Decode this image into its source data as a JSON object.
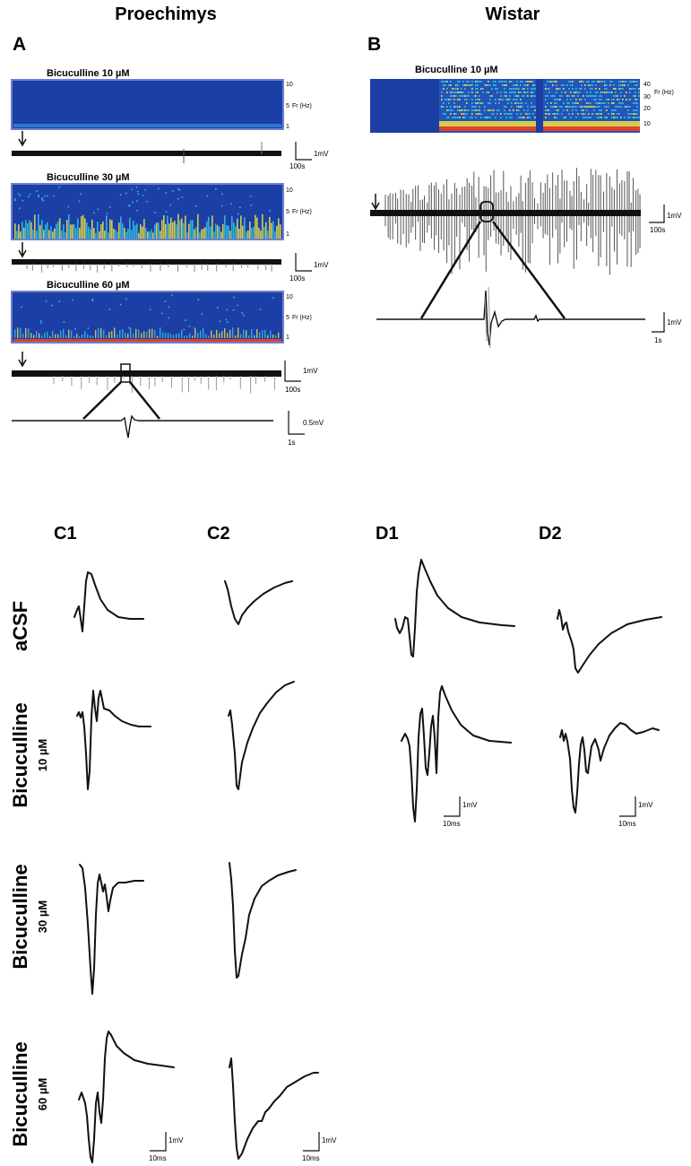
{
  "figure": {
    "col_proechimys": "Proechimys",
    "col_wistar": "Wistar",
    "panel_a": "A",
    "panel_b": "B",
    "c1": "C1",
    "c2": "C2",
    "d1": "D1",
    "d2": "D2"
  },
  "panel_a": {
    "spec1_title": "Bicuculline 10 µM",
    "spec2_title": "Bicuculline 30 µM",
    "spec3_title": "Bicuculline 60 µM",
    "freq_label": "Fr (Hz)",
    "freq_ticks": [
      "10",
      "5",
      "1"
    ],
    "trace_scale_v": "1mV",
    "trace_scale_t": "100s",
    "zoom_scale_v": "0.5mV",
    "zoom_scale_t": "1s"
  },
  "panel_b": {
    "spec_title": "Bicuculline 10 µM",
    "freq_label": "Fr (Hz)",
    "freq_ticks": [
      "40",
      "30",
      "20",
      "10"
    ],
    "trace_scale_v": "1mV",
    "trace_scale_t": "100s",
    "zoom_scale_v": "1mV",
    "zoom_scale_t": "1s"
  },
  "rows": {
    "acsf": "aCSF",
    "bic": "Bicuculline",
    "dose10": "10 µM",
    "dose30": "30 µM",
    "dose60": "60 µM"
  },
  "evoked_scales": {
    "v": "1mV",
    "t": "10ms"
  },
  "colors": {
    "spectro_bg": "#1c3fa6",
    "spectro_border": "#6e7fd0",
    "spectro_cyan": "#34c6e0",
    "spectro_yellow": "#f2e43c",
    "spectro_red": "#e2402a",
    "trace": "#111111"
  },
  "chart_data": [
    {
      "type": "heatmap",
      "title": "Bicuculline 10 µM",
      "ylabel": "Fr (Hz)",
      "yticks": [
        "10",
        "5",
        "1"
      ],
      "activity": "none"
    },
    {
      "type": "heatmap",
      "title": "Bicuculline 30 µM",
      "ylabel": "Fr (Hz)",
      "yticks": [
        "10",
        "5",
        "1"
      ],
      "activity": "low-frequency bursts"
    },
    {
      "type": "heatmap",
      "title": "Bicuculline 60 µM",
      "ylabel": "Fr (Hz)",
      "yticks": [
        "10",
        "5",
        "1"
      ],
      "activity": "sparse, low band"
    },
    {
      "type": "heatmap",
      "title": "Bicuculline 10 µM",
      "ylabel": "Fr (Hz)",
      "yticks": [
        "40",
        "30",
        "20",
        "10"
      ],
      "activity": "strong broadband after onset"
    },
    {
      "type": "line",
      "series": [
        {
          "name": "C1"
        },
        {
          "name": "C2"
        },
        {
          "name": "D1"
        },
        {
          "name": "D2"
        }
      ],
      "conditions": [
        "aCSF",
        "Bicuculline 10 µM",
        "Bicuculline 30 µM",
        "Bicuculline 60 µM"
      ]
    }
  ]
}
